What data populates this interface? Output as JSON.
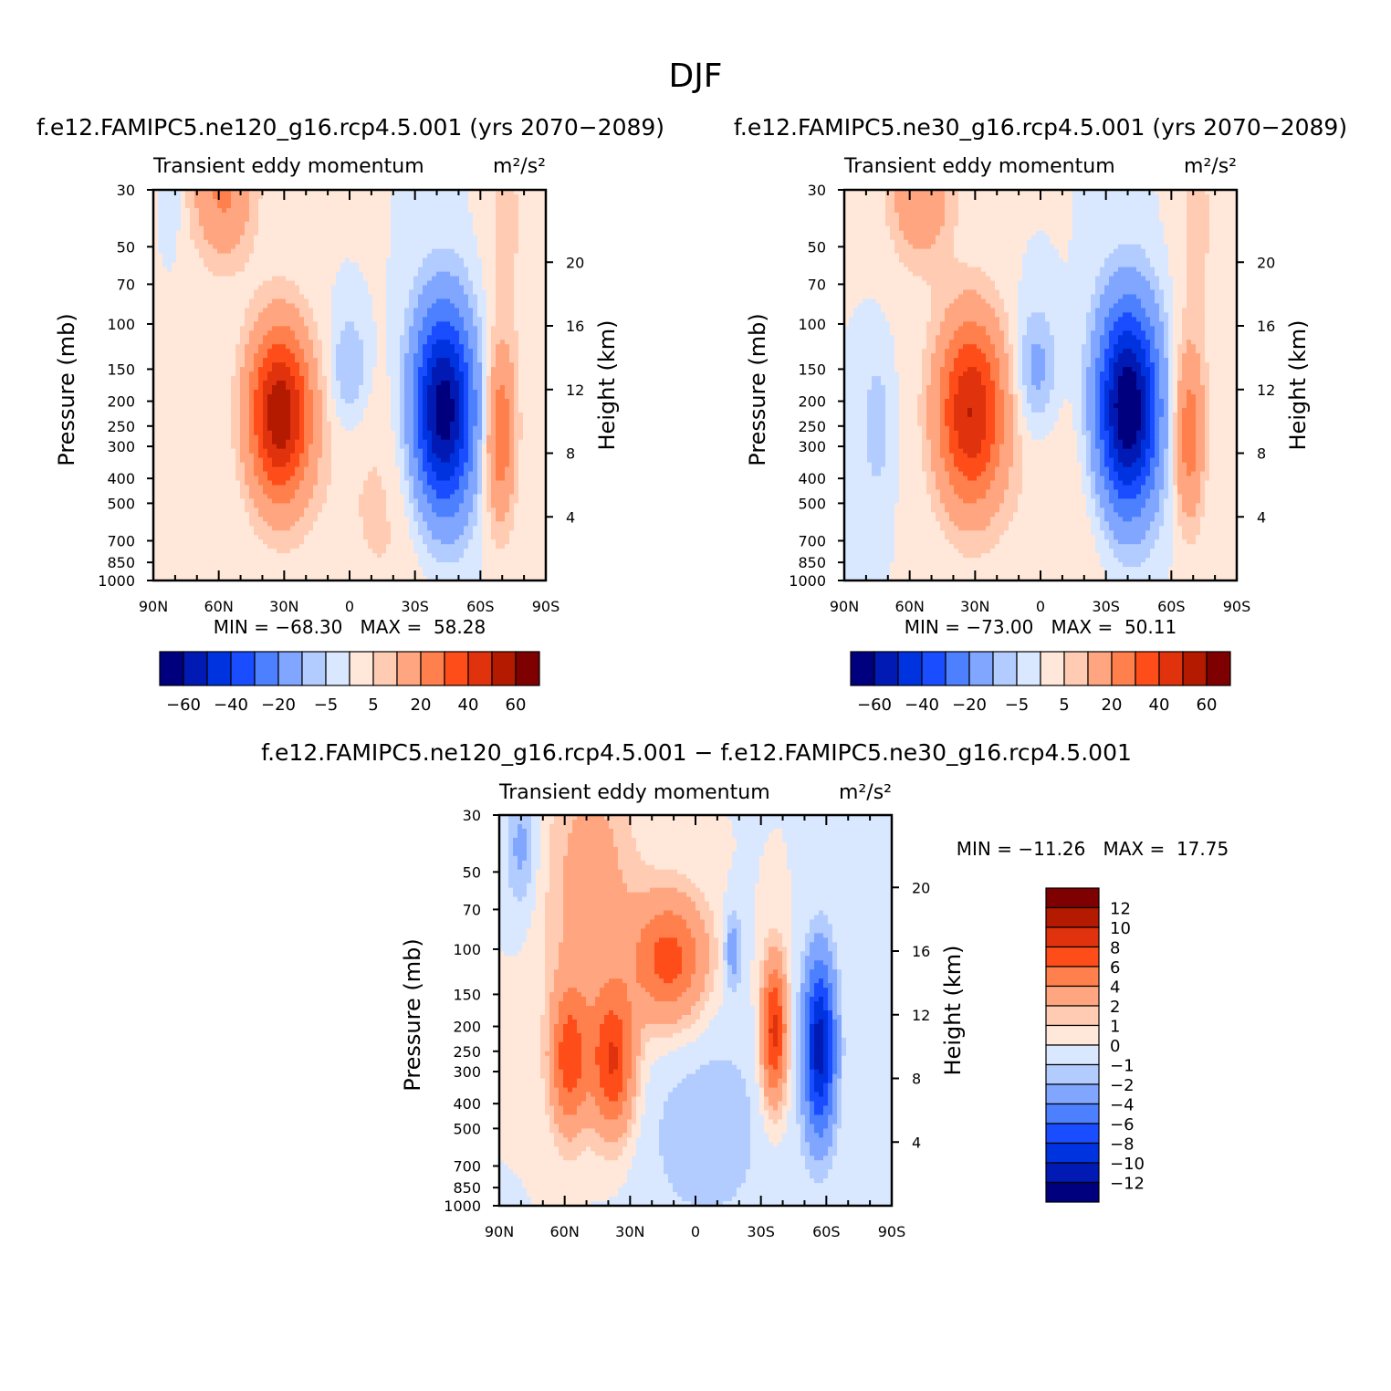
{
  "title": "DJF",
  "colors": {
    "full_palette": [
      "#00007f",
      "#001ab3",
      "#0033e0",
      "#1a4dff",
      "#4d80ff",
      "#80a6ff",
      "#b3ccff",
      "#d9e8ff",
      "#ffe8d9",
      "#ffccb3",
      "#ffa680",
      "#ff804d",
      "#ff4d1a",
      "#e0330d",
      "#b31a00",
      "#7f0000"
    ],
    "diff_palette": [
      "#00007f",
      "#001ab3",
      "#0033e0",
      "#1a4dff",
      "#4d80ff",
      "#80a6ff",
      "#b3ccff",
      "#d9e8ff",
      "#ffe8d9",
      "#ffccb3",
      "#ffa680",
      "#ff804d",
      "#ff4d1a",
      "#e0330d",
      "#b31a00",
      "#7f0000"
    ]
  },
  "chart_data": [
    {
      "type": "heatmap",
      "case": "f.e12.FAMIPC5.ne120_g16.rcp4.5.001 (yrs 2070−2089)",
      "title": "Transient eddy momentum",
      "units": "m²/s²",
      "ylabel": "Pressure (mb)",
      "y2label": "Height (km)",
      "xticks": [
        "90N",
        "60N",
        "30N",
        "0",
        "30S",
        "60S",
        "90S"
      ],
      "yticks": [
        "30",
        "50",
        "70",
        "100",
        "150",
        "200",
        "250",
        "300",
        "400",
        "500",
        "700",
        "850",
        "1000"
      ],
      "y2ticks": [
        "20",
        "16",
        "12",
        "8",
        "4"
      ],
      "xlim": [
        90,
        -90
      ],
      "ylim": [
        1000,
        30
      ],
      "y_scale": "log",
      "min_label": "MIN = −68.30",
      "max_label": "MAX =  58.28",
      "min": -68.3,
      "max": 58.28,
      "colorbar_labels": [
        "−60",
        "−40",
        "−20",
        "−5",
        "5",
        "20",
        "40",
        "60"
      ],
      "colorbar_levels": [
        -70,
        -60,
        -50,
        -40,
        -30,
        -20,
        -10,
        -5,
        0,
        5,
        10,
        20,
        30,
        40,
        50,
        60
      ],
      "features": [
        {
          "lat": 32,
          "p": 225,
          "value": 58,
          "sx": 10,
          "sy": 0.55
        },
        {
          "lat": 58,
          "p": 30,
          "value": 22,
          "sx": 10,
          "sy": 0.45
        },
        {
          "lat": -18,
          "p": 500,
          "value": 6,
          "sx": 22,
          "sy": 0.9
        },
        {
          "lat": -43,
          "p": 220,
          "value": -68,
          "sx": 10,
          "sy": 0.65
        },
        {
          "lat": 0,
          "p": 150,
          "value": -12,
          "sx": 6,
          "sy": 0.35
        },
        {
          "lat": 81,
          "p": 30,
          "value": -6,
          "sx": 3,
          "sy": 0.3
        },
        {
          "lat": -69,
          "p": 270,
          "value": 28,
          "sx": 5,
          "sy": 0.55
        },
        {
          "lat": -72,
          "p": 40,
          "value": 6,
          "sx": 8,
          "sy": 0.9
        }
      ]
    },
    {
      "type": "heatmap",
      "case": "f.e12.FAMIPC5.ne30_g16.rcp4.5.001 (yrs 2070−2089)",
      "title": "Transient eddy momentum",
      "units": "m²/s²",
      "ylabel": "Pressure (mb)",
      "y2label": "Height (km)",
      "xticks": [
        "90N",
        "60N",
        "30N",
        "0",
        "30S",
        "60S",
        "90S"
      ],
      "yticks": [
        "30",
        "50",
        "70",
        "100",
        "150",
        "200",
        "250",
        "300",
        "400",
        "500",
        "700",
        "850",
        "1000"
      ],
      "y2ticks": [
        "20",
        "16",
        "12",
        "8",
        "4"
      ],
      "xlim": [
        90,
        -90
      ],
      "ylim": [
        1000,
        30
      ],
      "y_scale": "log",
      "min_label": "MIN = −73.00",
      "max_label": "MAX =  50.11",
      "min": -73.0,
      "max": 50.11,
      "colorbar_labels": [
        "−60",
        "−40",
        "−20",
        "−5",
        "5",
        "20",
        "40",
        "60"
      ],
      "colorbar_levels": [
        -70,
        -60,
        -50,
        -40,
        -30,
        -20,
        -10,
        -5,
        0,
        5,
        10,
        20,
        30,
        40,
        50,
        60
      ],
      "features": [
        {
          "lat": 32,
          "p": 220,
          "value": 50,
          "sx": 11,
          "sy": 0.6
        },
        {
          "lat": 55,
          "p": 30,
          "value": 20,
          "sx": 10,
          "sy": 0.45
        },
        {
          "lat": -15,
          "p": 500,
          "value": 5,
          "sx": 20,
          "sy": 0.9
        },
        {
          "lat": -40,
          "p": 215,
          "value": -72,
          "sx": 10,
          "sy": 0.65
        },
        {
          "lat": 2,
          "p": 150,
          "value": -14,
          "sx": 7,
          "sy": 0.4
        },
        {
          "lat": 75,
          "p": 250,
          "value": -10,
          "sx": 4,
          "sy": 0.4
        },
        {
          "lat": -68,
          "p": 270,
          "value": 26,
          "sx": 5,
          "sy": 0.55
        },
        {
          "lat": -72,
          "p": 40,
          "value": 6,
          "sx": 8,
          "sy": 0.9
        }
      ]
    },
    {
      "type": "heatmap",
      "case": "f.e12.FAMIPC5.ne120_g16.rcp4.5.001 − f.e12.FAMIPC5.ne30_g16.rcp4.5.001",
      "title": "Transient eddy momentum",
      "units": "m²/s²",
      "ylabel": "Pressure (mb)",
      "y2label": "Height (km)",
      "xticks": [
        "90N",
        "60N",
        "30N",
        "0",
        "30S",
        "60S",
        "90S"
      ],
      "yticks": [
        "30",
        "50",
        "70",
        "100",
        "150",
        "200",
        "250",
        "300",
        "400",
        "500",
        "700",
        "850",
        "1000"
      ],
      "y2ticks": [
        "20",
        "16",
        "12",
        "8",
        "4"
      ],
      "xlim": [
        90,
        -90
      ],
      "ylim": [
        1000,
        30
      ],
      "y_scale": "log",
      "min_label": "MIN = −11.26",
      "max_label": "MAX =  17.75",
      "min": -11.26,
      "max": 17.75,
      "colorbar_labels": [
        "12",
        "10",
        "8",
        "6",
        "4",
        "2",
        "1",
        "0",
        "−1",
        "−2",
        "−4",
        "−6",
        "−8",
        "−10",
        "−12"
      ],
      "colorbar_levels": [
        -14,
        -12,
        -10,
        -8,
        -6,
        -4,
        -2,
        -1,
        0,
        1,
        2,
        4,
        6,
        8,
        10,
        12
      ],
      "features": [
        {
          "lat": 38,
          "p": 280,
          "value": 8,
          "sx": 7,
          "sy": 0.45
        },
        {
          "lat": 58,
          "p": 270,
          "value": 7,
          "sx": 6,
          "sy": 0.45
        },
        {
          "lat": 12,
          "p": 110,
          "value": 7,
          "sx": 12,
          "sy": 0.4
        },
        {
          "lat": 48,
          "p": 60,
          "value": 3,
          "sx": 14,
          "sy": 0.9
        },
        {
          "lat": -36,
          "p": 210,
          "value": 9,
          "sx": 4,
          "sy": 0.45
        },
        {
          "lat": -57,
          "p": 240,
          "value": -11,
          "sx": 5,
          "sy": 0.55
        },
        {
          "lat": -17,
          "p": 100,
          "value": -3,
          "sx": 3,
          "sy": 0.25
        },
        {
          "lat": 80,
          "p": 40,
          "value": -2.5,
          "sx": 5,
          "sy": 0.4
        },
        {
          "lat": -5,
          "p": 500,
          "value": -1.5,
          "sx": 25,
          "sy": 0.8
        }
      ]
    }
  ]
}
